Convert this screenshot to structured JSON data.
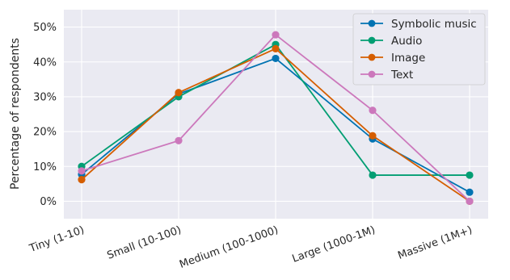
{
  "chart_data": {
    "type": "line",
    "categories": [
      "Tiny (1-10)",
      "Small (10-100)",
      "Medium (100-1000)",
      "Large (1000-1M)",
      "Massive (1M+)"
    ],
    "ylabel": "Percentage of respondents",
    "xlabel": "",
    "ylim": [
      -5,
      55
    ],
    "yticks": [
      0,
      10,
      20,
      30,
      40,
      50
    ],
    "ytick_labels": [
      "0%",
      "10%",
      "20%",
      "30%",
      "40%",
      "50%"
    ],
    "grid": true,
    "legend_position": "top-right",
    "series": [
      {
        "name": "Symbolic music",
        "color": "#0173b2",
        "values": [
          7.7,
          30.8,
          41.0,
          17.9,
          2.6
        ]
      },
      {
        "name": "Audio",
        "color": "#029e73",
        "values": [
          10.0,
          30.0,
          45.0,
          7.5,
          7.5
        ]
      },
      {
        "name": "Image",
        "color": "#d55e00",
        "values": [
          6.2,
          31.2,
          43.8,
          18.8,
          0.0
        ]
      },
      {
        "name": "Text",
        "color": "#cc78bc",
        "values": [
          8.7,
          17.4,
          47.8,
          26.1,
          0.0
        ]
      }
    ]
  }
}
